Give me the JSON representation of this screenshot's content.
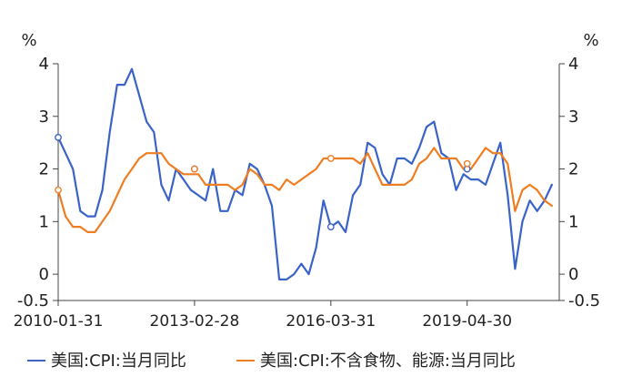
{
  "chart_data": {
    "type": "line",
    "left_axis": {
      "unit_label": "%",
      "ticks": [
        "4",
        "3",
        "2",
        "1",
        "0",
        "-0.5"
      ],
      "ylim": [
        -0.5,
        4
      ]
    },
    "right_axis": {
      "unit_label": "%",
      "ticks": [
        "4",
        "3",
        "2",
        "1",
        "0",
        "-0.5"
      ],
      "ylim": [
        -0.5,
        4
      ]
    },
    "x_axis": {
      "start": "2010-01-31",
      "end": "2021-05-31",
      "tick_labels": [
        "2010-01-31",
        "2013-02-28",
        "2016-03-31",
        "2019-04-30"
      ]
    },
    "legend_position": "bottom",
    "series": [
      {
        "name": "美国:CPI:当月同比",
        "color": "#3a63c8",
        "points": [
          [
            "2010-01",
            2.6
          ],
          [
            "2010-03",
            2.3
          ],
          [
            "2010-05",
            2.0
          ],
          [
            "2010-07",
            1.2
          ],
          [
            "2010-09",
            1.1
          ],
          [
            "2010-11",
            1.1
          ],
          [
            "2011-01",
            1.6
          ],
          [
            "2011-03",
            2.7
          ],
          [
            "2011-05",
            3.6
          ],
          [
            "2011-07",
            3.6
          ],
          [
            "2011-09",
            3.9
          ],
          [
            "2011-11",
            3.4
          ],
          [
            "2012-01",
            2.9
          ],
          [
            "2012-03",
            2.7
          ],
          [
            "2012-05",
            1.7
          ],
          [
            "2012-07",
            1.4
          ],
          [
            "2012-09",
            2.0
          ],
          [
            "2012-11",
            1.8
          ],
          [
            "2013-01",
            1.6
          ],
          [
            "2013-03",
            1.5
          ],
          [
            "2013-05",
            1.4
          ],
          [
            "2013-07",
            2.0
          ],
          [
            "2013-09",
            1.2
          ],
          [
            "2013-11",
            1.2
          ],
          [
            "2014-01",
            1.6
          ],
          [
            "2014-03",
            1.5
          ],
          [
            "2014-05",
            2.1
          ],
          [
            "2014-07",
            2.0
          ],
          [
            "2014-09",
            1.7
          ],
          [
            "2014-11",
            1.3
          ],
          [
            "2015-01",
            -0.1
          ],
          [
            "2015-03",
            -0.1
          ],
          [
            "2015-05",
            0.0
          ],
          [
            "2015-07",
            0.2
          ],
          [
            "2015-09",
            0.0
          ],
          [
            "2015-11",
            0.5
          ],
          [
            "2016-01",
            1.4
          ],
          [
            "2016-03",
            0.9
          ],
          [
            "2016-05",
            1.0
          ],
          [
            "2016-07",
            0.8
          ],
          [
            "2016-09",
            1.5
          ],
          [
            "2016-11",
            1.7
          ],
          [
            "2017-01",
            2.5
          ],
          [
            "2017-03",
            2.4
          ],
          [
            "2017-05",
            1.9
          ],
          [
            "2017-07",
            1.7
          ],
          [
            "2017-09",
            2.2
          ],
          [
            "2017-11",
            2.2
          ],
          [
            "2018-01",
            2.1
          ],
          [
            "2018-03",
            2.4
          ],
          [
            "2018-05",
            2.8
          ],
          [
            "2018-07",
            2.9
          ],
          [
            "2018-09",
            2.3
          ],
          [
            "2018-11",
            2.2
          ],
          [
            "2019-01",
            1.6
          ],
          [
            "2019-03",
            1.9
          ],
          [
            "2019-05",
            1.8
          ],
          [
            "2019-07",
            1.8
          ],
          [
            "2019-09",
            1.7
          ],
          [
            "2019-11",
            2.1
          ],
          [
            "2020-01",
            2.5
          ],
          [
            "2020-03",
            1.5
          ],
          [
            "2020-05",
            0.1
          ],
          [
            "2020-07",
            1.0
          ],
          [
            "2020-09",
            1.4
          ],
          [
            "2020-11",
            1.2
          ],
          [
            "2021-01",
            1.4
          ],
          [
            "2021-03",
            1.7
          ]
        ]
      },
      {
        "name": "美国:CPI:不含食物、能源:当月同比",
        "color": "#ef7d22",
        "points": [
          [
            "2010-01",
            1.6
          ],
          [
            "2010-03",
            1.1
          ],
          [
            "2010-05",
            0.9
          ],
          [
            "2010-07",
            0.9
          ],
          [
            "2010-09",
            0.8
          ],
          [
            "2010-11",
            0.8
          ],
          [
            "2011-01",
            1.0
          ],
          [
            "2011-03",
            1.2
          ],
          [
            "2011-05",
            1.5
          ],
          [
            "2011-07",
            1.8
          ],
          [
            "2011-09",
            2.0
          ],
          [
            "2011-11",
            2.2
          ],
          [
            "2012-01",
            2.3
          ],
          [
            "2012-03",
            2.3
          ],
          [
            "2012-05",
            2.3
          ],
          [
            "2012-07",
            2.1
          ],
          [
            "2012-09",
            2.0
          ],
          [
            "2012-11",
            1.9
          ],
          [
            "2013-01",
            1.9
          ],
          [
            "2013-03",
            1.9
          ],
          [
            "2013-05",
            1.7
          ],
          [
            "2013-07",
            1.7
          ],
          [
            "2013-09",
            1.7
          ],
          [
            "2013-11",
            1.7
          ],
          [
            "2014-01",
            1.6
          ],
          [
            "2014-03",
            1.7
          ],
          [
            "2014-05",
            2.0
          ],
          [
            "2014-07",
            1.9
          ],
          [
            "2014-09",
            1.7
          ],
          [
            "2014-11",
            1.7
          ],
          [
            "2015-01",
            1.6
          ],
          [
            "2015-03",
            1.8
          ],
          [
            "2015-05",
            1.7
          ],
          [
            "2015-07",
            1.8
          ],
          [
            "2015-09",
            1.9
          ],
          [
            "2015-11",
            2.0
          ],
          [
            "2016-01",
            2.2
          ],
          [
            "2016-03",
            2.2
          ],
          [
            "2016-05",
            2.2
          ],
          [
            "2016-07",
            2.2
          ],
          [
            "2016-09",
            2.2
          ],
          [
            "2016-11",
            2.1
          ],
          [
            "2017-01",
            2.3
          ],
          [
            "2017-03",
            2.0
          ],
          [
            "2017-05",
            1.7
          ],
          [
            "2017-07",
            1.7
          ],
          [
            "2017-09",
            1.7
          ],
          [
            "2017-11",
            1.7
          ],
          [
            "2018-01",
            1.8
          ],
          [
            "2018-03",
            2.1
          ],
          [
            "2018-05",
            2.2
          ],
          [
            "2018-07",
            2.4
          ],
          [
            "2018-09",
            2.2
          ],
          [
            "2018-11",
            2.2
          ],
          [
            "2019-01",
            2.2
          ],
          [
            "2019-03",
            2.0
          ],
          [
            "2019-05",
            2.0
          ],
          [
            "2019-07",
            2.2
          ],
          [
            "2019-09",
            2.4
          ],
          [
            "2019-11",
            2.3
          ],
          [
            "2020-01",
            2.3
          ],
          [
            "2020-03",
            2.1
          ],
          [
            "2020-05",
            1.2
          ],
          [
            "2020-07",
            1.6
          ],
          [
            "2020-09",
            1.7
          ],
          [
            "2020-11",
            1.6
          ],
          [
            "2021-01",
            1.4
          ],
          [
            "2021-03",
            1.3
          ]
        ]
      }
    ],
    "highlight_markers": [
      {
        "series": 0,
        "date": "2010-01",
        "value": 2.6
      },
      {
        "series": 0,
        "date": "2013-02",
        "value": 2.0
      },
      {
        "series": 0,
        "date": "2016-03",
        "value": 0.9
      },
      {
        "series": 0,
        "date": "2019-04",
        "value": 2.0
      },
      {
        "series": 1,
        "date": "2010-01",
        "value": 1.6
      },
      {
        "series": 1,
        "date": "2013-02",
        "value": 2.0
      },
      {
        "series": 1,
        "date": "2016-03",
        "value": 2.2
      },
      {
        "series": 1,
        "date": "2019-04",
        "value": 2.1
      }
    ]
  }
}
